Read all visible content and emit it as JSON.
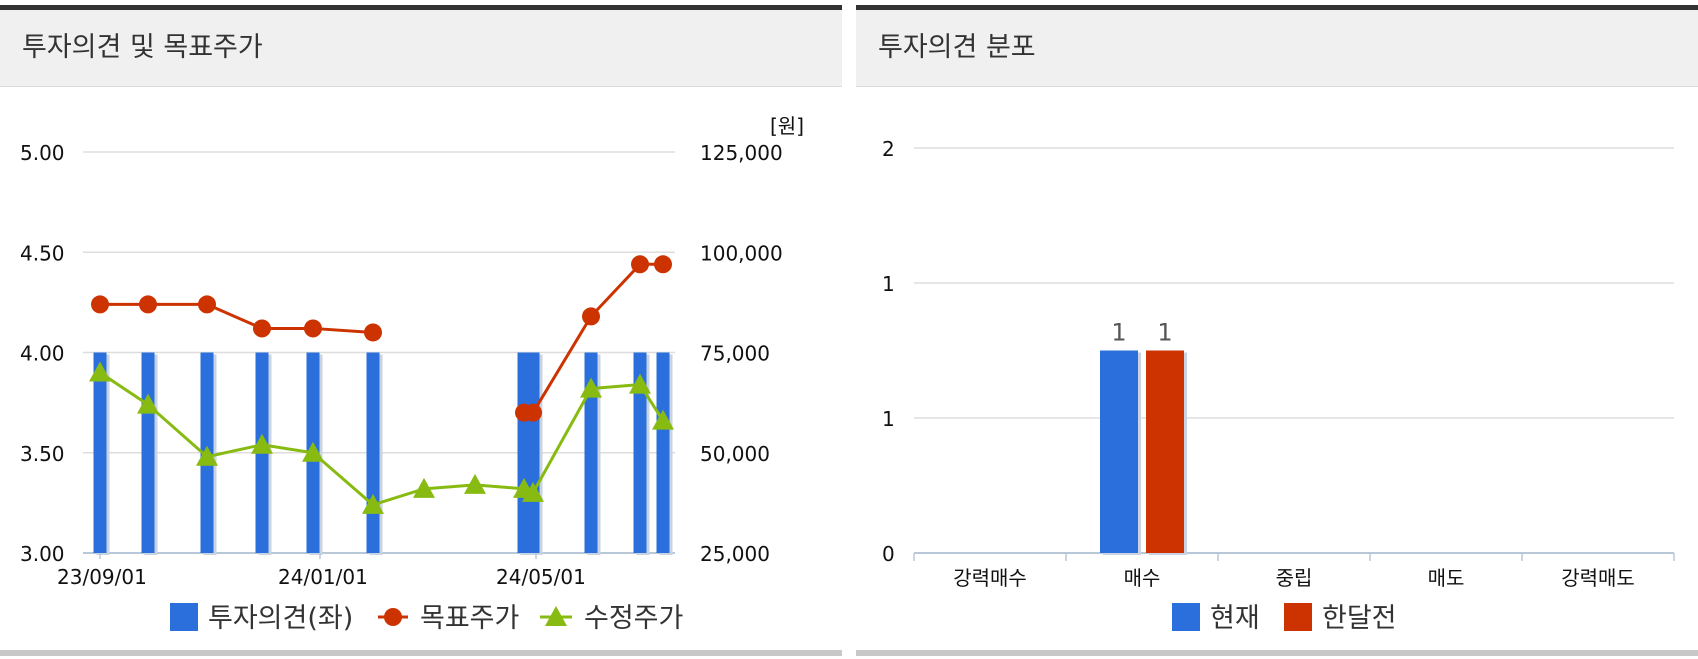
{
  "left": {
    "title": "투자의견 및 목표주가",
    "unit": "[원]",
    "legend": [
      "투자의견(좌)",
      "목표주가",
      "수정주가"
    ],
    "colors": {
      "bars": "#2a6fdc",
      "target": "#cc3300",
      "price": "#88bb11"
    },
    "chart_data": {
      "type": "bar+line",
      "x_ticks": [
        "23/09/01",
        "24/01/01",
        "24/05/01"
      ],
      "left_axis": {
        "ticks": [
          "3.00",
          "3.50",
          "4.00",
          "4.50",
          "5.00"
        ],
        "range": [
          3.0,
          5.0
        ]
      },
      "right_axis": {
        "ticks": [
          "25,000",
          "50,000",
          "75,000",
          "100,000",
          "125,000"
        ],
        "range": [
          25000,
          125000
        ]
      },
      "series": [
        {
          "name": "투자의견(좌)",
          "type": "bar",
          "axis": "left",
          "values": [
            4,
            4,
            4,
            4,
            4,
            4,
            null,
            null,
            4,
            4,
            4,
            4,
            4
          ]
        },
        {
          "name": "목표주가",
          "type": "line",
          "axis": "right",
          "values": [
            87000,
            87000,
            87000,
            81000,
            81000,
            80000,
            null,
            null,
            60000,
            60000,
            84000,
            97000,
            97000
          ]
        },
        {
          "name": "수정주가",
          "type": "line",
          "axis": "right",
          "values": [
            70000,
            62000,
            49000,
            52000,
            50000,
            37000,
            41000,
            42000,
            41000,
            40000,
            66000,
            67000,
            58000
          ]
        }
      ]
    }
  },
  "right": {
    "title": "투자의견 분포",
    "legend": [
      "현재",
      "한달전"
    ],
    "colors": {
      "current": "#2a6fdc",
      "month_ago": "#cc3300"
    },
    "chart_data": {
      "type": "bar",
      "categories": [
        "강력매수",
        "매수",
        "중립",
        "매도",
        "강력매도"
      ],
      "y_ticks": [
        "0",
        "1",
        "1",
        "2"
      ],
      "ylim": [
        0,
        2
      ],
      "series": [
        {
          "name": "현재",
          "values": [
            0,
            1,
            0,
            0,
            0
          ]
        },
        {
          "name": "한달전",
          "values": [
            0,
            1,
            0,
            0,
            0
          ]
        }
      ],
      "data_labels": [
        "1",
        "1"
      ]
    }
  }
}
